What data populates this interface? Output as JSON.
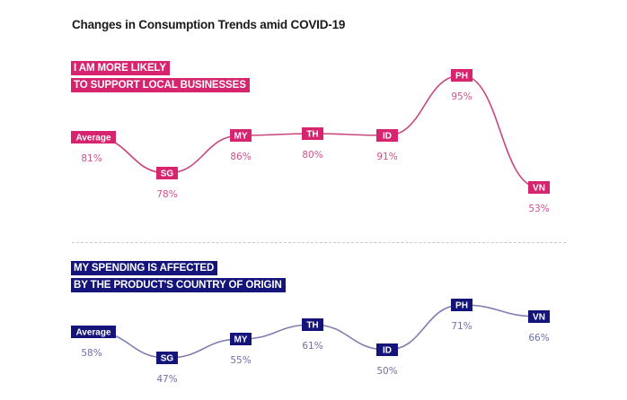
{
  "title": "Changes in Consumption Trends amid COVID-19",
  "colors": {
    "pink": "#d6246e",
    "pink_line": "#c8457d",
    "pink_text": "#d2508a",
    "navy": "#14147a",
    "navy_line": "#7f7db3",
    "navy_text": "#6f6fa8"
  },
  "chart_data": [
    {
      "type": "line",
      "title_lines": [
        "I AM MORE LIKELY",
        "TO SUPPORT LOCAL BUSINESSES"
      ],
      "categories": [
        "Average",
        "SG",
        "MY",
        "TH",
        "ID",
        "PH",
        "VN"
      ],
      "values": [
        81,
        78,
        86,
        80,
        91,
        95,
        53
      ],
      "value_labels": [
        "81%",
        "78%",
        "86%",
        "80%",
        "91%",
        "95%",
        "53%"
      ],
      "unit": "%",
      "grid": false,
      "legend": "none"
    },
    {
      "type": "line",
      "title_lines": [
        "MY SPENDING IS AFFECTED",
        "BY THE PRODUCT'S COUNTRY OF ORIGIN"
      ],
      "categories": [
        "Average",
        "SG",
        "MY",
        "TH",
        "ID",
        "PH",
        "VN"
      ],
      "values": [
        58,
        47,
        55,
        61,
        50,
        71,
        66
      ],
      "value_labels": [
        "58%",
        "47%",
        "55%",
        "61%",
        "50%",
        "71%",
        "66%"
      ],
      "unit": "%",
      "grid": false,
      "legend": "none"
    }
  ]
}
